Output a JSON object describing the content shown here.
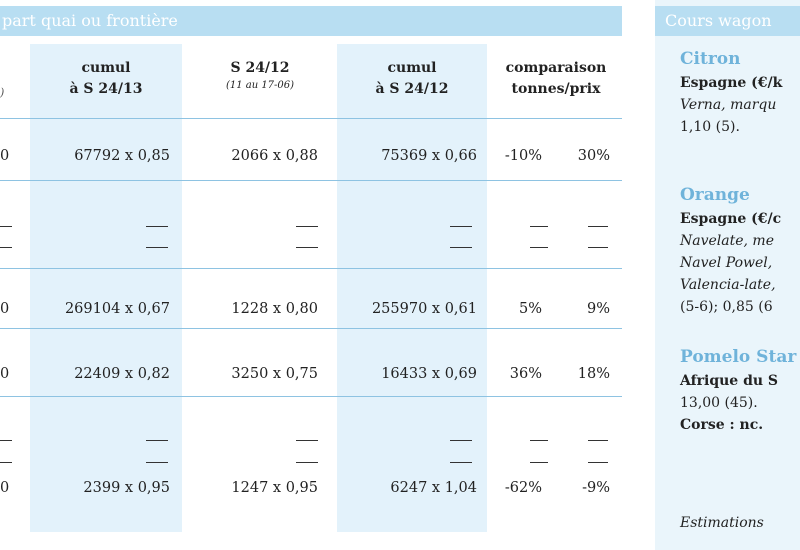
{
  "left_panel": {
    "title": "part quai ou frontière",
    "columns": [
      {
        "label_1": "cumul",
        "label_2": "à S 24/13",
        "sub": ""
      },
      {
        "label_1": "S 24/12",
        "label_2": "",
        "sub": "(11 au 17-06)"
      },
      {
        "label_1": "cumul",
        "label_2": "à S 24/12",
        "sub": ""
      },
      {
        "label_1": "comparaison",
        "label_2": "tonnes/prix",
        "sub": ""
      }
    ],
    "partial_first_col": "0",
    "rows": [
      {
        "c0": "0",
        "c1": "67792 x 0,85",
        "c2": "2066 x 0,88",
        "c3": "75369 x 0,66",
        "c4": "-10%",
        "c5": "30%"
      },
      {
        "c0": "0",
        "c1": "269104 x 0,67",
        "c2": "1228 x 0,80",
        "c3": "255970 x 0,61",
        "c4": "5%",
        "c5": "9%"
      },
      {
        "c0": "0",
        "c1": "22409 x 0,82",
        "c2": "3250 x 0,75",
        "c3": "16433 x 0,69",
        "c4": "36%",
        "c5": "18%"
      },
      {
        "c0": "0",
        "c1": "2399 x 0,95",
        "c2": "1247 x 0,95",
        "c3": "6247 x 1,04",
        "c4": "-62%",
        "c5": "-9%"
      }
    ]
  },
  "right_panel": {
    "title": "Cours wagon",
    "citron": {
      "name": "Citron",
      "origin": "Espagne (€/k",
      "variety": "Verna, marqu",
      "price": "1,10 (5)."
    },
    "orange": {
      "name": "Orange",
      "origin": "Espagne (€/c",
      "line1": "Navelate, me",
      "line2": "Navel Powel,",
      "line3": "Valencia-late,",
      "line4": "(5-6); 0,85 (6"
    },
    "pomelo": {
      "name": "Pomelo Star",
      "origin": "Afrique du S",
      "price": "13,00 (45).",
      "corse": "Corse : nc."
    },
    "footer": "Estimations"
  }
}
